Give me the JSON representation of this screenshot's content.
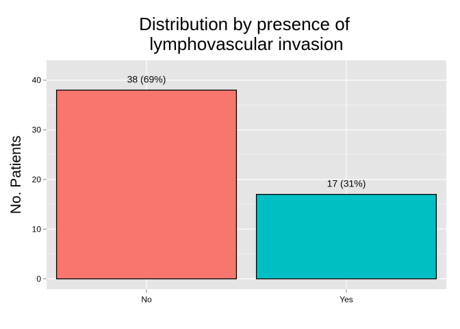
{
  "chart_data": {
    "type": "bar",
    "title_lines": [
      "Distribution by presence of",
      "lymphovascular invasion"
    ],
    "xlabel": "",
    "ylabel": "No. Patients",
    "categories": [
      "No",
      "Yes"
    ],
    "values": [
      38,
      17
    ],
    "bar_labels": [
      "38 (69%)",
      "17 (31%)"
    ],
    "colors": [
      "#F8766D",
      "#00BFC4"
    ],
    "yticks": [
      0,
      10,
      20,
      30,
      40
    ],
    "ylim": [
      -2.1,
      44
    ],
    "grid": true,
    "panel_background": "#E5E5E5",
    "grid_color": "#FFFFFF"
  }
}
